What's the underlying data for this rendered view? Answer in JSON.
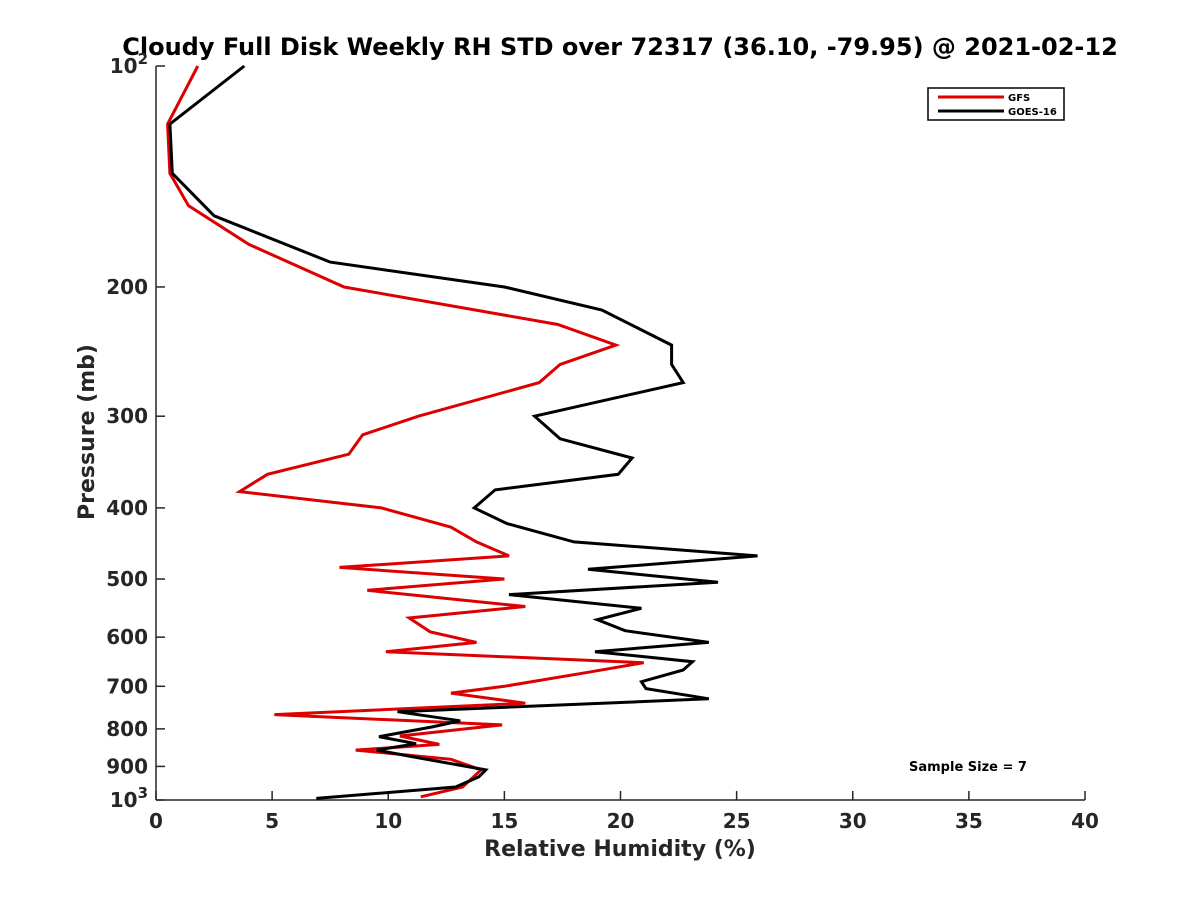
{
  "chart_data": {
    "type": "line",
    "title": "Cloudy Full Disk Weekly RH STD over 72317 (36.10, -79.95) @ 2021-02-12",
    "xlabel": "Relative Humidity (%)",
    "ylabel": "Pressure (mb)",
    "xlim": [
      0,
      40
    ],
    "ylim": [
      1000,
      100
    ],
    "y_scale": "log",
    "y_reversed": true,
    "x_ticks": [
      0,
      5,
      10,
      15,
      20,
      25,
      30,
      35,
      40
    ],
    "y_ticks": [
      {
        "value": 100,
        "base": "10",
        "exp": "2"
      },
      {
        "value": 200,
        "label": "200"
      },
      {
        "value": 300,
        "label": "300"
      },
      {
        "value": 400,
        "label": "400"
      },
      {
        "value": 500,
        "label": "500"
      },
      {
        "value": 600,
        "label": "600"
      },
      {
        "value": 700,
        "label": "700"
      },
      {
        "value": 800,
        "label": "800"
      },
      {
        "value": 900,
        "label": "900"
      },
      {
        "value": 1000,
        "base": "10",
        "exp": "3"
      }
    ],
    "legend": {
      "placement": "top-right",
      "entries": [
        "GFS",
        "GOES-16"
      ]
    },
    "annotation": "Sample Size = 7",
    "grid": false,
    "series": [
      {
        "name": "GFS",
        "color": "#dd0000",
        "points": [
          [
            1.8,
            100
          ],
          [
            0.5,
            120
          ],
          [
            0.6,
            140
          ],
          [
            1.4,
            155
          ],
          [
            4.0,
            175
          ],
          [
            8.1,
            200
          ],
          [
            17.3,
            225
          ],
          [
            19.8,
            240
          ],
          [
            17.4,
            255
          ],
          [
            16.5,
            270
          ],
          [
            11.3,
            300
          ],
          [
            8.9,
            318
          ],
          [
            8.3,
            338
          ],
          [
            4.8,
            360
          ],
          [
            3.6,
            380
          ],
          [
            9.7,
            400
          ],
          [
            12.7,
            425
          ],
          [
            13.8,
            445
          ],
          [
            15.2,
            465
          ],
          [
            7.9,
            482
          ],
          [
            15.0,
            500
          ],
          [
            9.1,
            518
          ],
          [
            15.9,
            545
          ],
          [
            10.9,
            565
          ],
          [
            11.8,
            590
          ],
          [
            13.8,
            610
          ],
          [
            9.9,
            628
          ],
          [
            21.0,
            650
          ],
          [
            18.6,
            670
          ],
          [
            15.0,
            700
          ],
          [
            12.7,
            715
          ],
          [
            15.9,
            738
          ],
          [
            5.1,
            765
          ],
          [
            14.9,
            790
          ],
          [
            10.5,
            818
          ],
          [
            12.2,
            840
          ],
          [
            8.6,
            855
          ],
          [
            12.7,
            880
          ],
          [
            14.0,
            910
          ],
          [
            13.2,
            960
          ],
          [
            11.4,
            990
          ]
        ]
      },
      {
        "name": "GOES-16",
        "color": "#000000",
        "points": [
          [
            3.8,
            100
          ],
          [
            0.6,
            120
          ],
          [
            0.7,
            140
          ],
          [
            2.5,
            160
          ],
          [
            7.5,
            185
          ],
          [
            15.0,
            200
          ],
          [
            19.2,
            215
          ],
          [
            22.2,
            240
          ],
          [
            22.2,
            255
          ],
          [
            22.7,
            270
          ],
          [
            16.3,
            300
          ],
          [
            17.4,
            322
          ],
          [
            20.5,
            342
          ],
          [
            19.9,
            360
          ],
          [
            14.6,
            378
          ],
          [
            13.7,
            400
          ],
          [
            15.1,
            420
          ],
          [
            18.0,
            445
          ],
          [
            25.9,
            465
          ],
          [
            18.6,
            485
          ],
          [
            24.2,
            505
          ],
          [
            15.2,
            525
          ],
          [
            20.9,
            548
          ],
          [
            19.0,
            568
          ],
          [
            20.2,
            588
          ],
          [
            23.8,
            610
          ],
          [
            18.9,
            628
          ],
          [
            23.1,
            648
          ],
          [
            22.7,
            665
          ],
          [
            20.9,
            690
          ],
          [
            21.1,
            705
          ],
          [
            23.8,
            728
          ],
          [
            10.4,
            758
          ],
          [
            13.1,
            780
          ],
          [
            11.9,
            795
          ],
          [
            9.6,
            820
          ],
          [
            11.2,
            838
          ],
          [
            9.5,
            855
          ],
          [
            11.2,
            875
          ],
          [
            14.2,
            910
          ],
          [
            13.9,
            930
          ],
          [
            12.9,
            960
          ],
          [
            6.9,
            995
          ]
        ]
      }
    ]
  }
}
